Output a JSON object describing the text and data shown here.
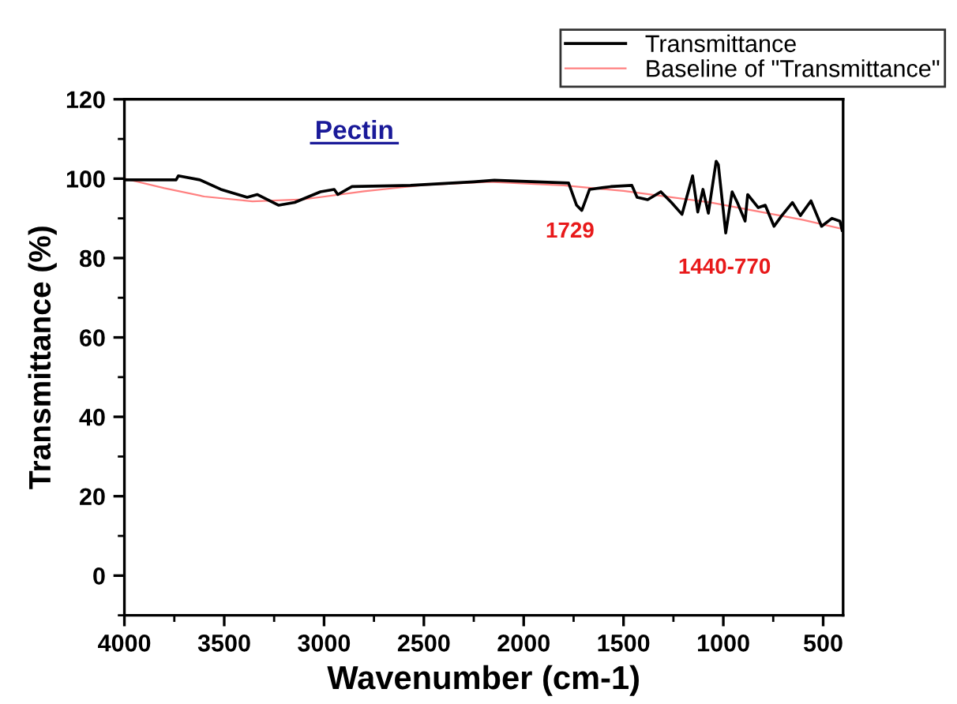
{
  "chart_data": {
    "type": "line",
    "title": "Pectin",
    "xlabel": "Wavenumber (cm-1)",
    "ylabel": "Transmittance (%)",
    "xlim": [
      4000,
      400
    ],
    "xticks": [
      4000,
      3500,
      3000,
      2500,
      2000,
      1500,
      1000,
      500
    ],
    "ylim": [
      -10,
      120
    ],
    "yticks": [
      0,
      20,
      40,
      60,
      80,
      100,
      120
    ],
    "grid": false,
    "legend": "top right",
    "marker": "none",
    "line_style": "solid",
    "annotations": [
      "1729",
      "1440-770"
    ],
    "series": [
      {
        "name": "Transmittance",
        "color": "#000000",
        "x": [
          4000,
          3741,
          3730,
          3622,
          3517,
          3385,
          3335,
          3227,
          3147,
          3018,
          2949,
          2931,
          2860,
          2567,
          2250,
          2147,
          1775,
          1735,
          1709,
          1670,
          1564,
          1458,
          1432,
          1379,
          1313,
          1260,
          1207,
          1154,
          1128,
          1102,
          1075,
          1036,
          1025,
          988,
          956,
          930,
          891,
          878,
          825,
          790,
          746,
          707,
          654,
          614,
          561,
          508,
          456,
          416,
          405
        ],
        "values": [
          99.7,
          99.7,
          100.7,
          99.7,
          97.3,
          95.3,
          96,
          93.3,
          94,
          96.7,
          97.3,
          96,
          98,
          98.3,
          99.2,
          99.6,
          98.9,
          93.3,
          92,
          97.3,
          98,
          98.3,
          95.3,
          94.7,
          96.7,
          94,
          91,
          100.7,
          91.6,
          97.3,
          91.3,
          104.4,
          103.5,
          86.3,
          96.7,
          94,
          89.3,
          96,
          92.7,
          93.3,
          88,
          90.7,
          94,
          90.7,
          94.4,
          88,
          90,
          89.3,
          87
        ]
      },
      {
        "name": "Baseline of \"Transmittance\"",
        "color": "#ff8080",
        "x": [
          4000,
          3800,
          3600,
          3359,
          3100,
          2800,
          2500,
          2171,
          1800,
          1500,
          1062,
          800,
          600,
          400
        ],
        "values": [
          100,
          97.6,
          95.5,
          94.3,
          94.8,
          96.8,
          98.4,
          99.2,
          98.3,
          96.9,
          94,
          91.5,
          89.6,
          87.3
        ]
      }
    ]
  }
}
